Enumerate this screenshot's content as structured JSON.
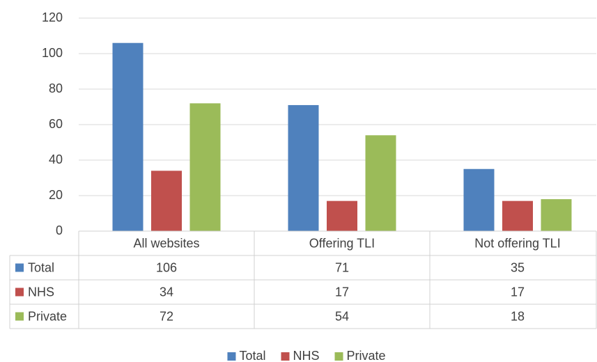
{
  "chart_data": {
    "type": "bar",
    "categories": [
      "All websites",
      "Offering TLI",
      "Not offering TLI"
    ],
    "series": [
      {
        "name": "Total",
        "color": "#4f81bd",
        "values": [
          106,
          71,
          35
        ]
      },
      {
        "name": "NHS",
        "color": "#c0504d",
        "values": [
          34,
          17,
          17
        ]
      },
      {
        "name": "Private",
        "color": "#9bbb59",
        "values": [
          72,
          54,
          18
        ]
      }
    ],
    "ylim": [
      0,
      120
    ],
    "yticks": [
      0,
      20,
      40,
      60,
      80,
      100,
      120
    ],
    "grid": true,
    "legend": "bottom",
    "data_table": true
  }
}
